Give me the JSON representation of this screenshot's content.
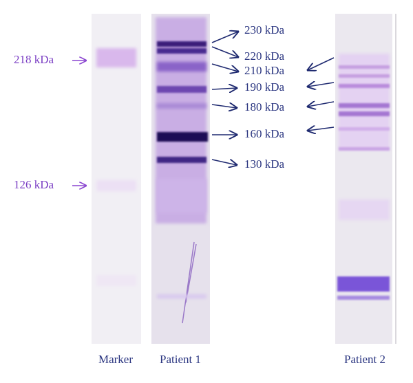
{
  "lanes": [
    {
      "label": "Marker"
    },
    {
      "label": "Patient 1"
    },
    {
      "label": "Patient 2"
    }
  ],
  "marker_labels": [
    "218 kDa",
    "126 kDa"
  ],
  "band_labels": [
    "230 kDa",
    "220 kDa",
    "210 kDa",
    "190 kDa",
    "180 kDa",
    "160 kDa",
    "130 kDa"
  ]
}
